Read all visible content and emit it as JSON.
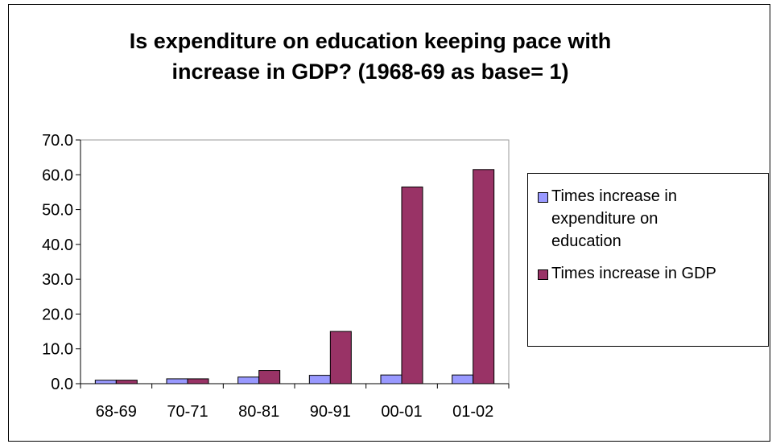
{
  "chart_data": {
    "type": "bar",
    "title_lines": [
      "Is expenditure on education keeping pace with",
      "increase in GDP? (1968-69 as base= 1)"
    ],
    "categories": [
      "68-69",
      "70-71",
      "80-81",
      "90-91",
      "00-01",
      "01-02"
    ],
    "series": [
      {
        "name_lines": [
          "Times increase in",
          "expenditure on",
          "education"
        ],
        "color": "#9999ff",
        "values": [
          1.0,
          1.4,
          1.9,
          2.4,
          2.5,
          2.5
        ]
      },
      {
        "name_lines": [
          "Times increase in GDP"
        ],
        "color": "#993366",
        "values": [
          1.0,
          1.4,
          3.8,
          15.0,
          56.5,
          61.5
        ]
      }
    ],
    "ylim": [
      0,
      70
    ],
    "yticks": [
      "0.0",
      "10.0",
      "20.0",
      "30.0",
      "40.0",
      "50.0",
      "60.0",
      "70.0"
    ],
    "grid": false,
    "legend_position": "right"
  }
}
